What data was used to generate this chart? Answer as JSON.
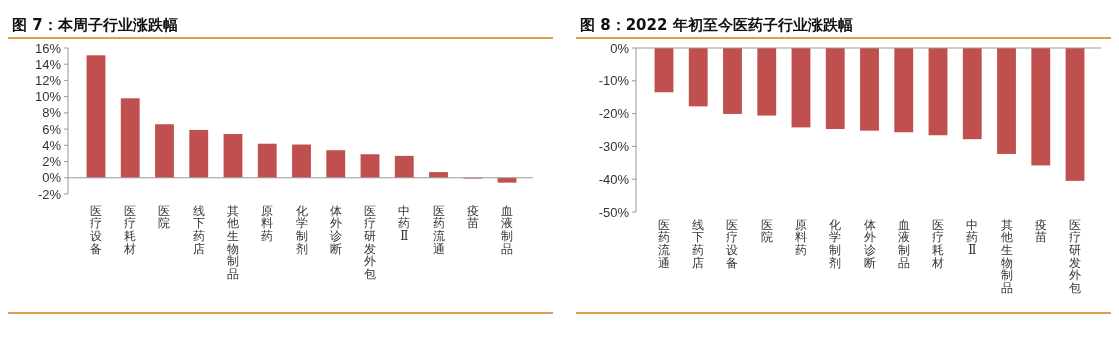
{
  "chart_data": [
    {
      "type": "bar",
      "title": "图 7：本周子行业涨跌幅",
      "categories": [
        "医疗设备",
        "医疗耗材",
        "医院",
        "线下药店",
        "其他生物制品",
        "原料药",
        "化学制剂",
        "体外诊断",
        "医疗研发外包",
        "中药Ⅱ",
        "医药流通",
        "疫苗",
        "血液制品"
      ],
      "series": [
        {
          "color": "#c0504d",
          "values": [
            15.1,
            9.8,
            6.6,
            5.9,
            5.4,
            4.2,
            4.1,
            3.4,
            2.9,
            2.7,
            0.7,
            -0.1,
            -0.6
          ]
        }
      ],
      "ylim": [
        -2,
        16
      ],
      "yticks": [
        {
          "value": -2,
          "label": "-2%"
        },
        {
          "value": 0,
          "label": "0%"
        },
        {
          "value": 2,
          "label": "2%"
        },
        {
          "value": 4,
          "label": "4%"
        },
        {
          "value": 6,
          "label": "6%"
        },
        {
          "value": 8,
          "label": "8%"
        },
        {
          "value": 10,
          "label": "10%"
        },
        {
          "value": 12,
          "label": "12%"
        },
        {
          "value": 14,
          "label": "14%"
        },
        {
          "value": 16,
          "label": "16%"
        }
      ],
      "grid": false
    },
    {
      "type": "bar",
      "title": "图 8：2022 年初至今医药子行业涨跌幅",
      "categories": [
        "医药流通",
        "线下药店",
        "医疗设备",
        "医院",
        "原料药",
        "化学制剂",
        "体外诊断",
        "血液制品",
        "医疗耗材",
        "中药Ⅱ",
        "其他生物制品",
        "疫苗",
        "医疗研发外包"
      ],
      "series": [
        {
          "color": "#c0504d",
          "values": [
            -13.5,
            -17.8,
            -20.1,
            -20.6,
            -24.2,
            -24.7,
            -25.2,
            -25.7,
            -26.6,
            -27.8,
            -32.3,
            -35.8,
            -40.5
          ]
        }
      ],
      "ylim": [
        -50,
        0
      ],
      "yticks": [
        {
          "value": -50,
          "label": "-50%"
        },
        {
          "value": -40,
          "label": "-40%"
        },
        {
          "value": -30,
          "label": "-30%"
        },
        {
          "value": -20,
          "label": "-20%"
        },
        {
          "value": -10,
          "label": "-10%"
        },
        {
          "value": 0,
          "label": "0%"
        }
      ],
      "grid": false
    }
  ]
}
